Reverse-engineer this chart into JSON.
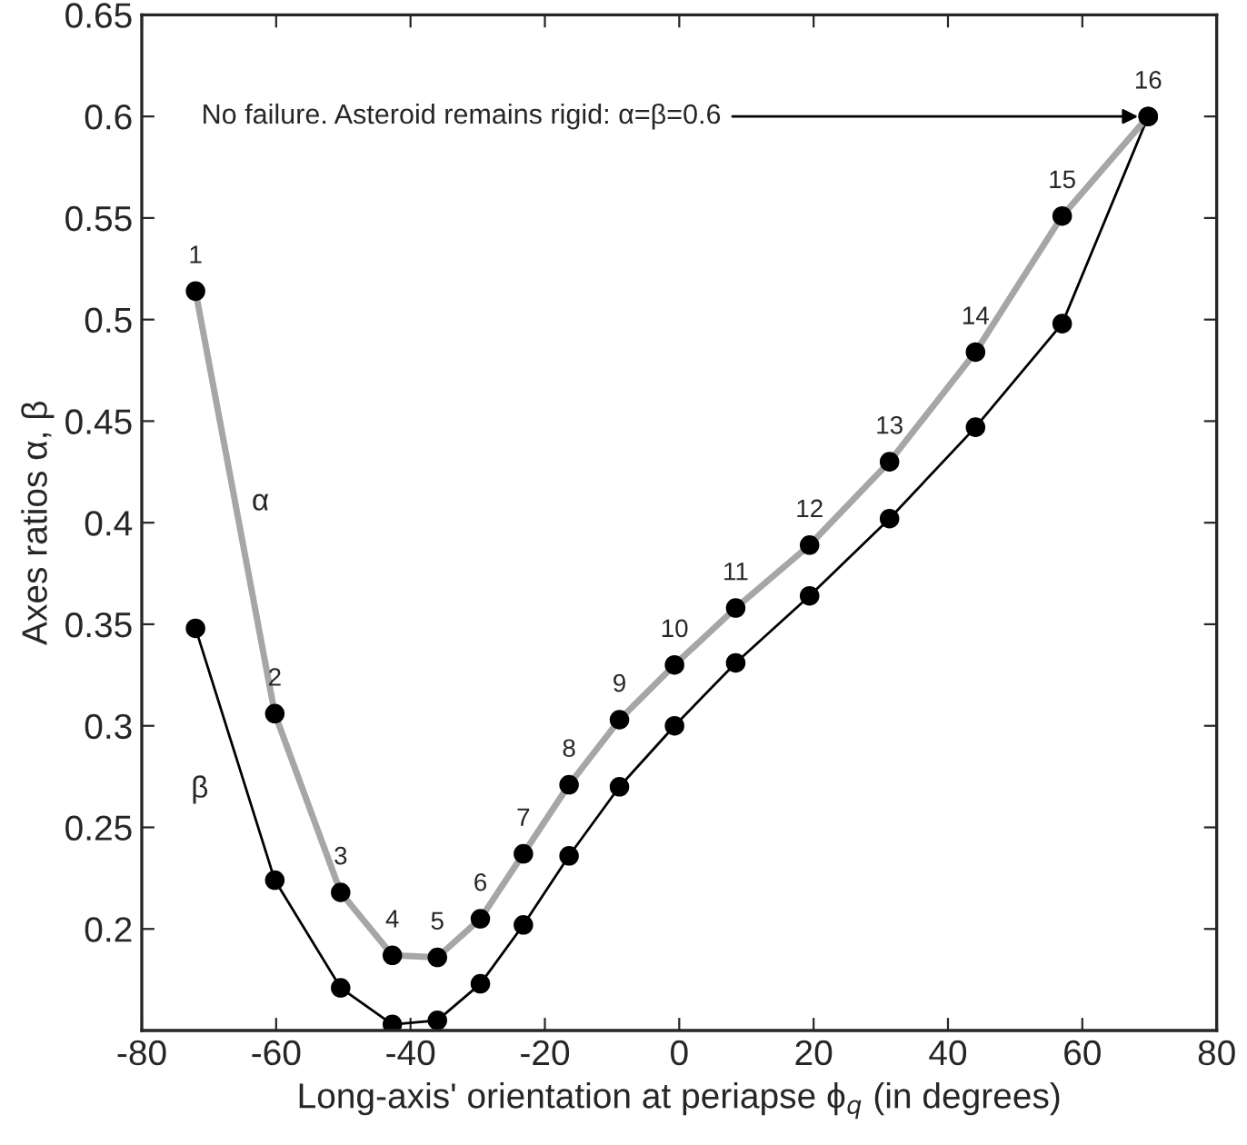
{
  "chart_data": {
    "type": "line",
    "xlabel": "Long-axis' orientation at periapse ϕ$_{q}$ (in degrees)",
    "ylabel": "Axes ratios α, β",
    "xlim": [
      -80,
      80
    ],
    "xticks": [
      -80,
      -60,
      -40,
      -20,
      0,
      20,
      40,
      60,
      80
    ],
    "ylim": [
      0.15,
      0.65
    ],
    "yticks": [
      0.2,
      0.25,
      0.3,
      0.35,
      0.4,
      0.45,
      0.5,
      0.55,
      0.6,
      0.65
    ],
    "grid": false,
    "legend": false,
    "marker": "circle",
    "line_style": "solid",
    "x": [
      -72.0,
      -60.2,
      -50.4,
      -42.7,
      -36.0,
      -29.6,
      -23.2,
      -16.4,
      -8.9,
      -0.7,
      8.4,
      19.4,
      31.3,
      44.1,
      57.0,
      69.8
    ],
    "series": [
      {
        "name": "α",
        "color": "#a6a6a6",
        "values": [
          0.514,
          0.306,
          0.218,
          0.187,
          0.186,
          0.205,
          0.237,
          0.271,
          0.303,
          0.33,
          0.358,
          0.389,
          0.43,
          0.484,
          0.551,
          0.6
        ]
      },
      {
        "name": "β",
        "color": "#000000",
        "values": [
          0.348,
          0.224,
          0.171,
          0.153,
          0.155,
          0.173,
          0.202,
          0.236,
          0.27,
          0.3,
          0.331,
          0.364,
          0.402,
          0.447,
          0.498,
          0.6
        ]
      }
    ],
    "annotations": [
      {
        "text": "No failure. Asteroid remains rigid: α=β=0.6",
        "x": 69.8,
        "y": 0.6
      },
      {
        "text": "1",
        "x": -72.0,
        "y": 0.514
      },
      {
        "text": "2",
        "x": -60.2,
        "y": 0.306
      },
      {
        "text": "3",
        "x": -50.4,
        "y": 0.218
      },
      {
        "text": "4",
        "x": -42.7,
        "y": 0.187
      },
      {
        "text": "5",
        "x": -36.0,
        "y": 0.186
      },
      {
        "text": "6",
        "x": -29.6,
        "y": 0.205
      },
      {
        "text": "7",
        "x": -23.2,
        "y": 0.237
      },
      {
        "text": "8",
        "x": -16.4,
        "y": 0.271
      },
      {
        "text": "9",
        "x": -8.9,
        "y": 0.303
      },
      {
        "text": "10",
        "x": -0.7,
        "y": 0.33
      },
      {
        "text": "11",
        "x": 8.4,
        "y": 0.358
      },
      {
        "text": "12",
        "x": 19.4,
        "y": 0.389
      },
      {
        "text": "13",
        "x": 31.3,
        "y": 0.43
      },
      {
        "text": "14",
        "x": 44.1,
        "y": 0.484
      },
      {
        "text": "15",
        "x": 57.0,
        "y": 0.551
      },
      {
        "text": "16",
        "x": 69.8,
        "y": 0.6
      }
    ]
  }
}
